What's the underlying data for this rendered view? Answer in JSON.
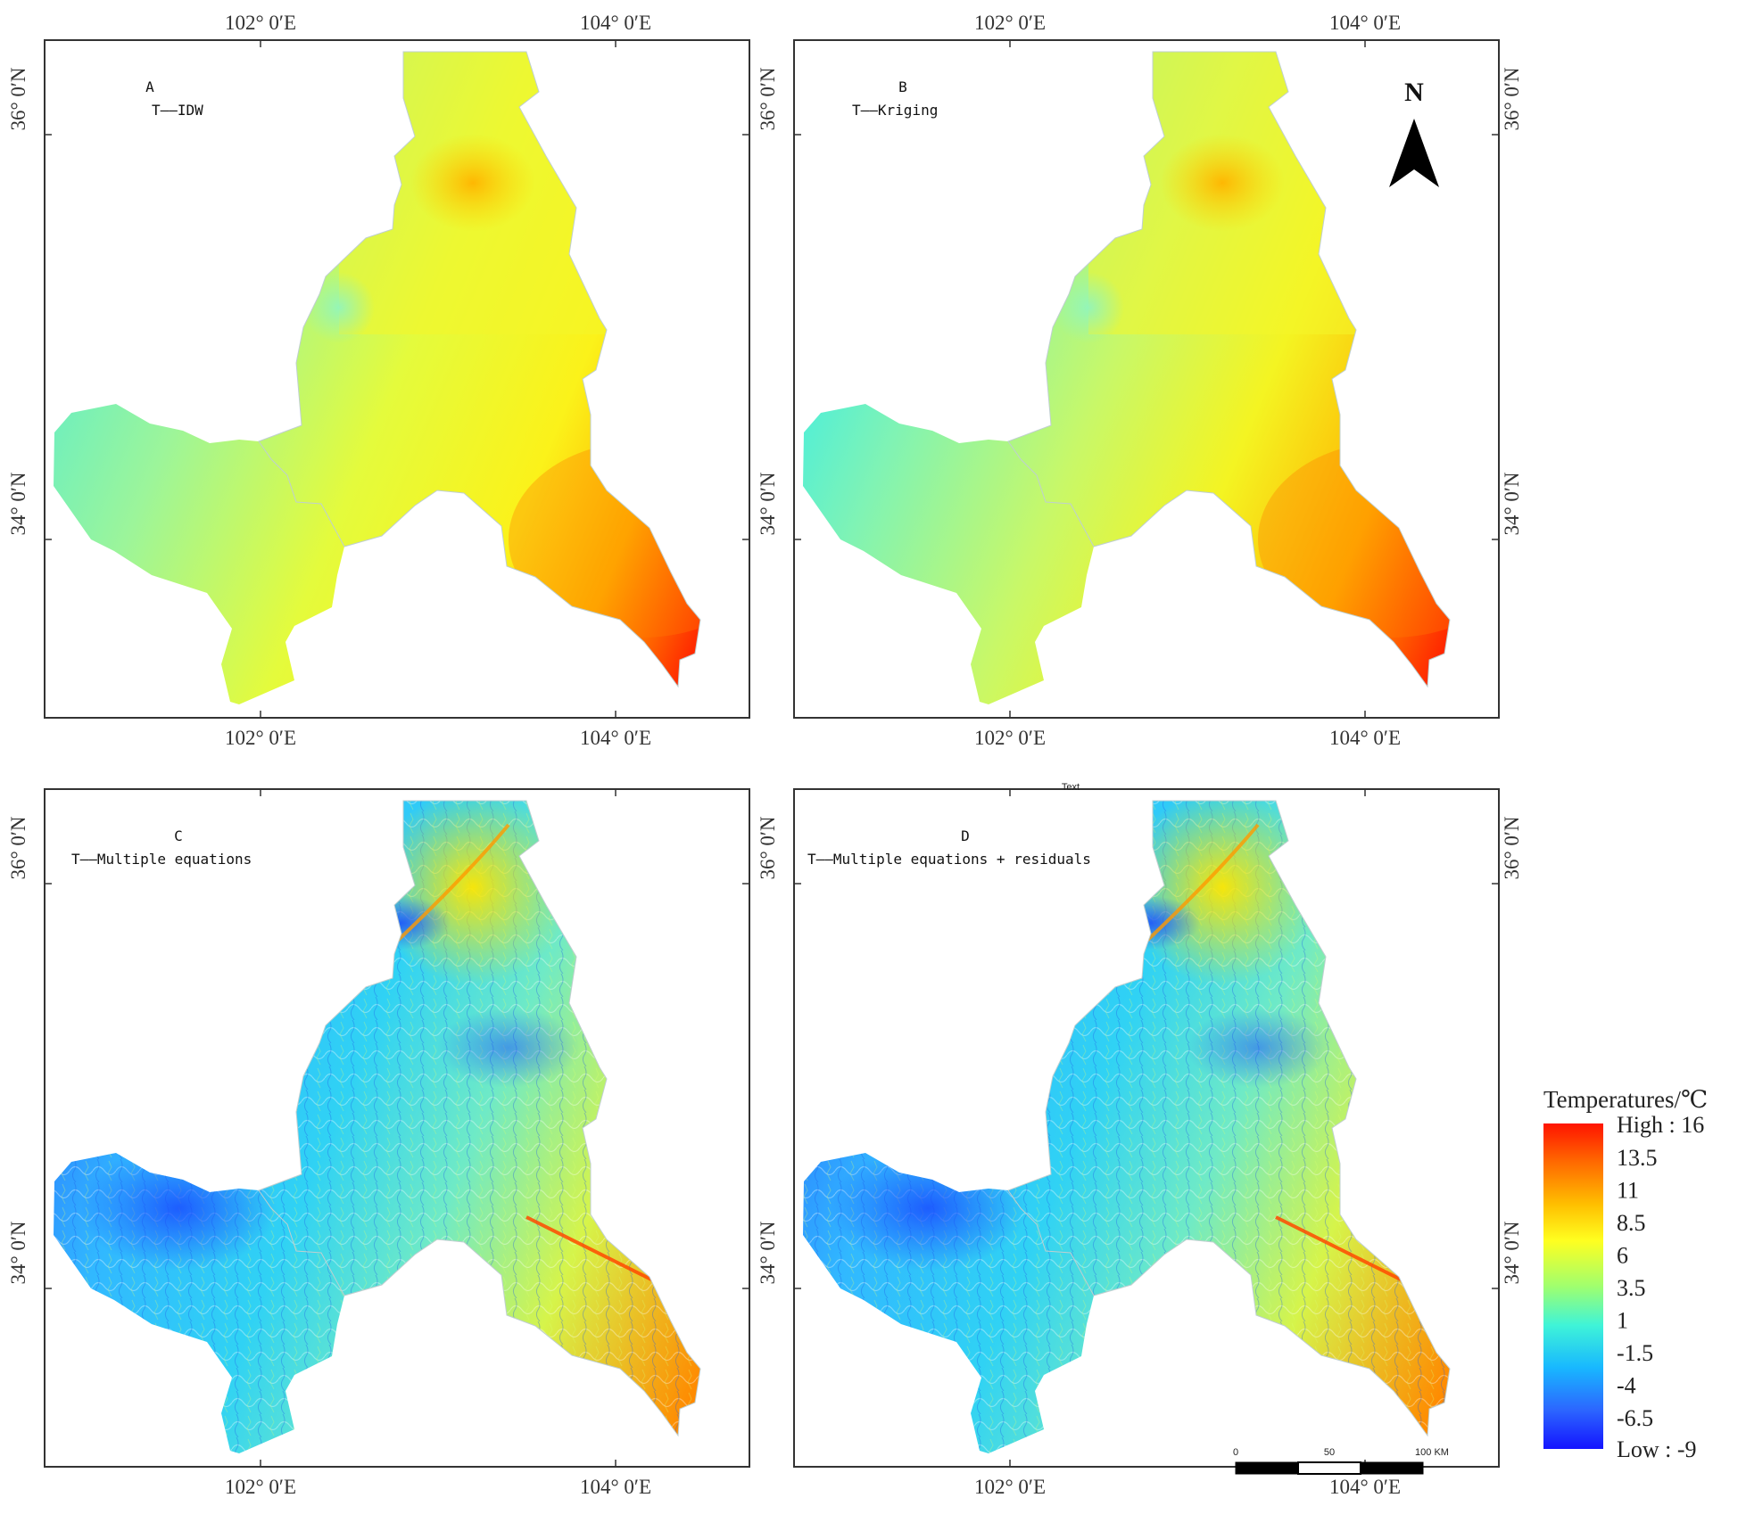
{
  "panels": [
    {
      "id": "A",
      "letter": "A",
      "label": "T——IDW",
      "style": "smooth"
    },
    {
      "id": "B",
      "letter": "B",
      "label": "T——Kriging",
      "style": "smooth"
    },
    {
      "id": "C",
      "letter": "C",
      "label": "T——Multiple equations",
      "style": "terrain"
    },
    {
      "id": "D",
      "letter": "D",
      "label": "T——Multiple equations + residuals",
      "style": "terrain"
    }
  ],
  "coords": {
    "lon_102": "102° 0′E",
    "lon_104": "104° 0′E",
    "lat_36": "36° 0′N",
    "lat_34": "34° 0′N"
  },
  "stray_text": "Text",
  "north_arrow": {
    "label": "N"
  },
  "scalebar": {
    "labels": [
      "0",
      "50",
      "100 KM"
    ]
  },
  "legend": {
    "title": "Temperatures/℃",
    "high": "High : 16",
    "low": "Low : -9",
    "ticks": [
      "13.5",
      "11",
      "8.5",
      "6",
      "3.5",
      "1",
      "-1.5",
      "-4",
      "-6.5"
    ],
    "colors": [
      "#ff1a00",
      "#ff7a00",
      "#ffd000",
      "#f5ff20",
      "#9cff6a",
      "#3ff0d2",
      "#1fb4ff",
      "#2a6cff",
      "#1a1aff"
    ]
  }
}
